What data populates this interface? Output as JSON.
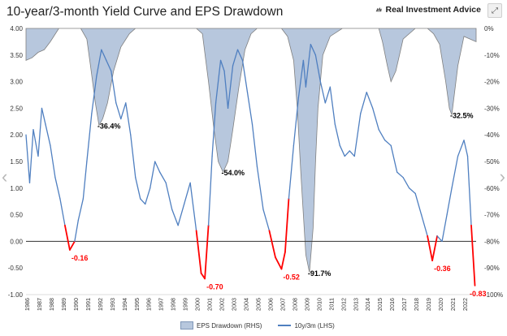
{
  "title": "10-year/3-month Yield Curve and EPS Drawdown",
  "brand": {
    "name": "Real Investment Advice",
    "logo_icon": "eagle-logo-icon"
  },
  "controls": {
    "expand_icon": "expand-icon",
    "prev_icon": "chevron-left-icon",
    "next_icon": "chevron-right-icon"
  },
  "colors": {
    "yield_line": "#4f7fc0",
    "eps_fill": "#b7c7dd",
    "eps_stroke": "#808080",
    "below_zero": "#ff0000",
    "zero_line": "#333333"
  },
  "chart_data": {
    "type": "line",
    "title": "10-year/3-month Yield Curve and EPS Drawdown",
    "x_tick_labels": [
      "1986",
      "1987",
      "1988",
      "1989",
      "1990",
      "1991",
      "1992",
      "1993",
      "1994",
      "1995",
      "1996",
      "1997",
      "1998",
      "1999",
      "2000",
      "2001",
      "2002",
      "2003",
      "2004",
      "2005",
      "2006",
      "2007",
      "2008",
      "2009",
      "2010",
      "2011",
      "2012",
      "2013",
      "2014",
      "2015",
      "2016",
      "2017",
      "2018",
      "2019",
      "2020",
      "2021",
      "2022"
    ],
    "xlim": [
      1986,
      2023
    ],
    "y_left": {
      "lim": [
        -1.0,
        4.0
      ],
      "tick_labels": [
        "4.00",
        "3.50",
        "3.00",
        "2.50",
        "2.00",
        "1.50",
        "1.00",
        "0.50",
        "0.00",
        "-0.50",
        "-1.00"
      ]
    },
    "y_right": {
      "lim": [
        -100,
        0
      ],
      "tick_labels": [
        "0%",
        "-10%",
        "-20%",
        "-30%",
        "-40%",
        "-50%",
        "-60%",
        "-70%",
        "-80%",
        "-90%",
        "-100%"
      ]
    },
    "legend": [
      {
        "label": "EPS Drawdown (RHS)"
      },
      {
        "label": "10y/3m (LHS)"
      }
    ],
    "legend_position": "bottom",
    "series": [
      {
        "name": "10y/3m (LHS)",
        "axis": "left",
        "x": [
          1986,
          1986.3,
          1986.6,
          1987,
          1987.3,
          1987.6,
          1988,
          1988.4,
          1988.8,
          1989.2,
          1989.6,
          1990,
          1990.3,
          1990.7,
          1991,
          1991.4,
          1991.8,
          1992.2,
          1992.6,
          1993,
          1993.4,
          1993.8,
          1994.2,
          1994.6,
          1995,
          1995.4,
          1995.8,
          1996.2,
          1996.6,
          1997,
          1997.5,
          1998,
          1998.5,
          1999,
          1999.5,
          2000,
          2000.4,
          2000.7,
          2001,
          2001.3,
          2001.6,
          2002,
          2002.3,
          2002.6,
          2003,
          2003.4,
          2003.8,
          2004.2,
          2004.6,
          2005,
          2005.5,
          2006,
          2006.5,
          2007,
          2007.3,
          2007.6,
          2008,
          2008.4,
          2008.8,
          2009,
          2009.4,
          2009.8,
          2010.2,
          2010.6,
          2011,
          2011.4,
          2011.8,
          2012.2,
          2012.6,
          2013,
          2013.5,
          2014,
          2014.5,
          2015,
          2015.5,
          2016,
          2016.5,
          2017,
          2017.5,
          2018,
          2018.5,
          2019,
          2019.4,
          2019.8,
          2020.2,
          2020.6,
          2021,
          2021.5,
          2022,
          2022.3,
          2022.6,
          2022.9
        ],
        "y": [
          2.0,
          1.1,
          2.1,
          1.6,
          2.5,
          2.2,
          1.8,
          1.2,
          0.8,
          0.3,
          -0.16,
          0.0,
          0.4,
          0.8,
          1.5,
          2.4,
          3.1,
          3.6,
          3.4,
          3.2,
          2.6,
          2.3,
          2.6,
          2.0,
          1.2,
          0.8,
          0.7,
          1.0,
          1.5,
          1.3,
          1.1,
          0.6,
          0.3,
          0.7,
          1.1,
          0.2,
          -0.6,
          -0.7,
          0.3,
          1.6,
          2.6,
          3.4,
          3.2,
          2.5,
          3.3,
          3.6,
          3.4,
          2.8,
          2.2,
          1.4,
          0.6,
          0.2,
          -0.3,
          -0.52,
          -0.2,
          0.8,
          1.8,
          2.7,
          3.4,
          2.9,
          3.7,
          3.5,
          3.0,
          2.6,
          2.9,
          2.2,
          1.8,
          1.6,
          1.7,
          1.6,
          2.4,
          2.8,
          2.5,
          2.1,
          1.9,
          1.8,
          1.3,
          1.2,
          1.0,
          0.9,
          0.5,
          0.1,
          -0.36,
          0.1,
          0.0,
          0.5,
          1.0,
          1.6,
          1.9,
          1.6,
          0.3,
          -0.83
        ]
      },
      {
        "name": "EPS Drawdown (RHS)",
        "axis": "right",
        "unit": "%",
        "x": [
          1986,
          1986.5,
          1987,
          1987.5,
          1988,
          1988.7,
          1989.2,
          1989.7,
          1990.5,
          1991,
          1991.3,
          1991.7,
          1992,
          1992.3,
          1992.7,
          1993.2,
          1993.8,
          1994.5,
          1995,
          1996,
          1998,
          1999,
          2000,
          2000.5,
          2001,
          2001.4,
          2001.8,
          2002.2,
          2002.6,
          2003,
          2003.5,
          2004,
          2004.5,
          2005,
          2006,
          2007,
          2007.5,
          2008,
          2008.3,
          2008.6,
          2009,
          2009.3,
          2009.6,
          2009.8,
          2010,
          2010.4,
          2011,
          2012,
          2013,
          2014,
          2015,
          2015.3,
          2015.7,
          2016,
          2016.4,
          2017,
          2018,
          2019,
          2019.5,
          2020,
          2020.5,
          2020.8,
          2021,
          2021.5,
          2022,
          2022.5,
          2023
        ],
        "y": [
          -12,
          -11,
          -9,
          -8,
          -5,
          0,
          0,
          0,
          0,
          -4,
          -14,
          -28,
          -36.4,
          -34,
          -28,
          -16,
          -7,
          -2,
          0,
          0,
          0,
          0,
          0,
          -2,
          -20,
          -36,
          -50,
          -54.0,
          -50,
          -38,
          -22,
          -8,
          -2,
          0,
          0,
          0,
          -3,
          -12,
          -30,
          -55,
          -85,
          -91.7,
          -75,
          -50,
          -30,
          -10,
          -3,
          0,
          0,
          0,
          0,
          -5,
          -14,
          -20,
          -16,
          -4,
          0,
          0,
          -2,
          -6,
          -20,
          -30,
          -32.5,
          -14,
          -3,
          -4,
          -5
        ]
      }
    ],
    "annotations": [
      {
        "text": "-36.4%",
        "x": 1992.0,
        "y_right": -36.4,
        "color": "#000000"
      },
      {
        "text": "-54.0%",
        "x": 2002.2,
        "y_right": -54.0,
        "color": "#000000"
      },
      {
        "text": "-91.7%",
        "x": 2009.3,
        "y_right": -91.7,
        "color": "#000000"
      },
      {
        "text": "-32.5%",
        "x": 2021.0,
        "y_right": -32.5,
        "color": "#000000"
      },
      {
        "text": "-0.16",
        "x": 1989.6,
        "y_left": -0.16,
        "color": "#ff0000"
      },
      {
        "text": "-0.70",
        "x": 2000.7,
        "y_left": -0.7,
        "color": "#ff0000"
      },
      {
        "text": "-0.52",
        "x": 2007.0,
        "y_left": -0.52,
        "color": "#ff0000"
      },
      {
        "text": "-0.36",
        "x": 2019.4,
        "y_left": -0.36,
        "color": "#ff0000"
      },
      {
        "text": "-0.83",
        "x": 2022.9,
        "y_left": -0.83,
        "color": "#ff0000"
      }
    ]
  }
}
